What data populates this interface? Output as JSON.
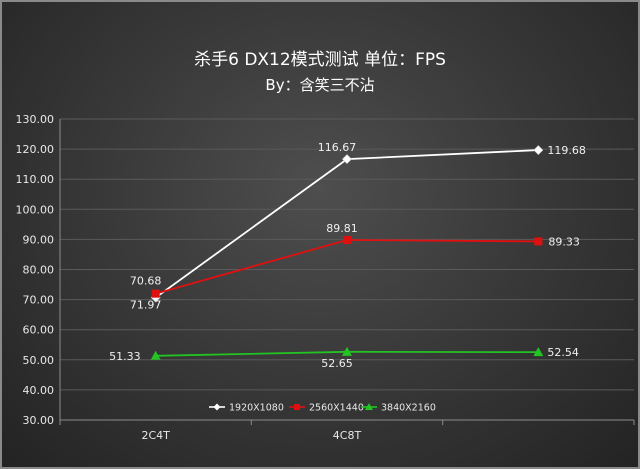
{
  "chart_data": {
    "type": "line",
    "title": "杀手6 DX12模式测试 单位：FPS",
    "subtitle": "By：含笑三不沾",
    "categories": [
      "2C4T",
      "4C8T",
      ""
    ],
    "ylim": [
      30,
      130
    ],
    "y_ticks": [
      "30.00",
      "40.00",
      "50.00",
      "60.00",
      "70.00",
      "80.00",
      "90.00",
      "100.00",
      "110.00",
      "120.00",
      "130.00"
    ],
    "grid": true,
    "legend_position": "bottom",
    "series": [
      {
        "name": "1920X1080",
        "values": [
          70.68,
          116.67,
          119.68
        ],
        "labels": [
          "70.68",
          "116.67",
          "119.68"
        ],
        "color": "#ffffff",
        "marker": "diamond"
      },
      {
        "name": "2560X1440",
        "values": [
          71.97,
          89.81,
          89.33
        ],
        "labels": [
          "71.97",
          "89.81",
          "89.33"
        ],
        "color": "#e01010",
        "marker": "square"
      },
      {
        "name": "3840X2160",
        "values": [
          51.33,
          52.65,
          52.54
        ],
        "labels": [
          "51.33",
          "52.65",
          "52.54"
        ],
        "color": "#22c322",
        "marker": "triangle"
      }
    ]
  }
}
